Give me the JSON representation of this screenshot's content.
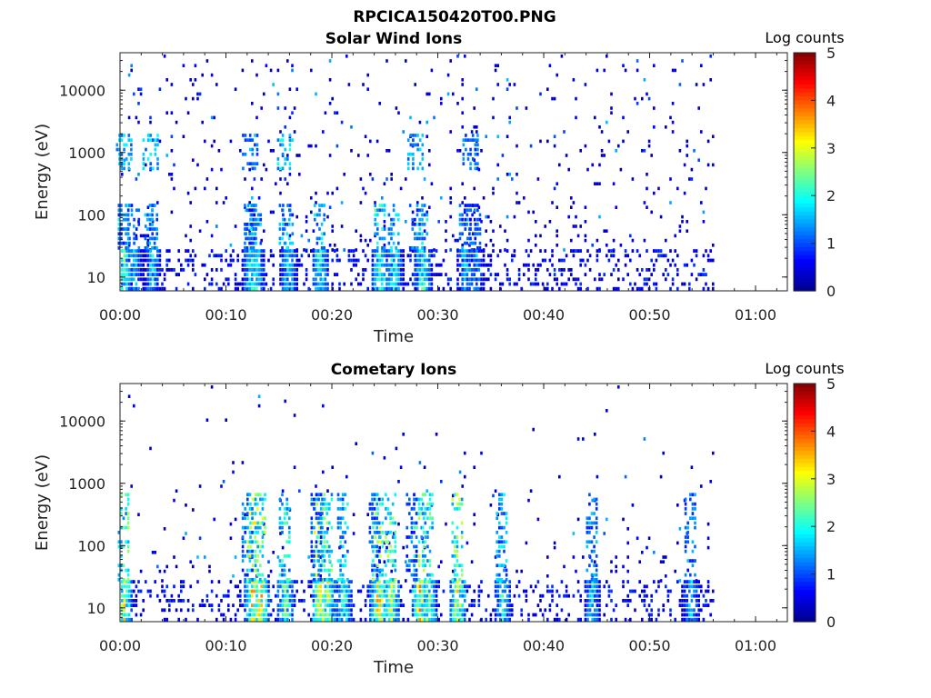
{
  "figure_title": "RPCICA150420T00.PNG",
  "colorscale": [
    "#00008f",
    "#0000ff",
    "#0080ff",
    "#00ffff",
    "#80ff80",
    "#ffff00",
    "#ff8000",
    "#ff0000",
    "#800000"
  ],
  "chart_data": [
    {
      "type": "heatmap",
      "title": "Solar Wind Ions",
      "xlabel": "Time",
      "ylabel": "Energy (eV)",
      "x_ticks": [
        "00:00",
        "00:10",
        "00:20",
        "00:30",
        "00:40",
        "00:50",
        "01:00"
      ],
      "x_range_minutes": [
        0,
        63
      ],
      "y_scale": "log",
      "y_ticks": [
        "10",
        "100",
        "1000",
        "10000"
      ],
      "y_range": [
        6,
        40000
      ],
      "colorbar": {
        "label": "Log counts",
        "ticks": [
          "0",
          "1",
          "2",
          "3",
          "4",
          "5"
        ],
        "range": [
          0,
          5
        ]
      },
      "data_end_minute": 56,
      "low_energy_bursts": [
        {
          "t": 0.3,
          "level": 2.4
        },
        {
          "t": 1.3,
          "level": 1.8
        },
        {
          "t": 3.0,
          "level": 2.0
        },
        {
          "t": 12.3,
          "level": 2.3
        },
        {
          "t": 12.8,
          "level": 2.2
        },
        {
          "t": 15.8,
          "level": 2.1
        },
        {
          "t": 18.8,
          "level": 2.5
        },
        {
          "t": 24.5,
          "level": 2.8
        },
        {
          "t": 25.8,
          "level": 2.4
        },
        {
          "t": 28.5,
          "level": 2.6
        },
        {
          "t": 32.5,
          "level": 1.9
        },
        {
          "t": 33.5,
          "level": 1.6
        }
      ],
      "mid_energy_bursts": [
        {
          "t": 0.3,
          "level": 1.9
        },
        {
          "t": 2.8,
          "level": 2.0
        },
        {
          "t": 12.2,
          "level": 1.7
        },
        {
          "t": 15.5,
          "level": 2.2
        },
        {
          "t": 27.8,
          "level": 1.8
        },
        {
          "t": 33.0,
          "level": 1.5
        }
      ]
    },
    {
      "type": "heatmap",
      "title": "Cometary Ions",
      "xlabel": "Time",
      "ylabel": "Energy (eV)",
      "x_ticks": [
        "00:00",
        "00:10",
        "00:20",
        "00:30",
        "00:40",
        "00:50",
        "01:00"
      ],
      "x_range_minutes": [
        0,
        63
      ],
      "y_scale": "log",
      "y_ticks": [
        "10",
        "100",
        "1000",
        "10000"
      ],
      "y_range": [
        6,
        40000
      ],
      "colorbar": {
        "label": "Log counts",
        "ticks": [
          "0",
          "1",
          "2",
          "3",
          "4",
          "5"
        ],
        "range": [
          0,
          5
        ]
      },
      "data_end_minute": 56,
      "low_energy_bursts": [
        {
          "t": 0.3,
          "level": 3.2
        },
        {
          "t": 12.5,
          "level": 3.9
        },
        {
          "t": 13.2,
          "level": 3.6
        },
        {
          "t": 15.5,
          "level": 2.8
        },
        {
          "t": 18.8,
          "level": 3.8
        },
        {
          "t": 19.5,
          "level": 3.2
        },
        {
          "t": 21.0,
          "level": 2.6
        },
        {
          "t": 24.3,
          "level": 3.8
        },
        {
          "t": 25.5,
          "level": 3.4
        },
        {
          "t": 28.2,
          "level": 3.6
        },
        {
          "t": 29.0,
          "level": 3.0
        },
        {
          "t": 31.8,
          "level": 3.5
        },
        {
          "t": 36.0,
          "level": 2.3
        },
        {
          "t": 44.5,
          "level": 2.0
        },
        {
          "t": 53.8,
          "level": 1.9
        }
      ],
      "mid_energy_bursts": [
        {
          "t": 12.0,
          "level": 2.0
        },
        {
          "t": 18.5,
          "level": 1.8
        },
        {
          "t": 24.0,
          "level": 1.9
        },
        {
          "t": 27.5,
          "level": 1.7
        }
      ]
    }
  ]
}
